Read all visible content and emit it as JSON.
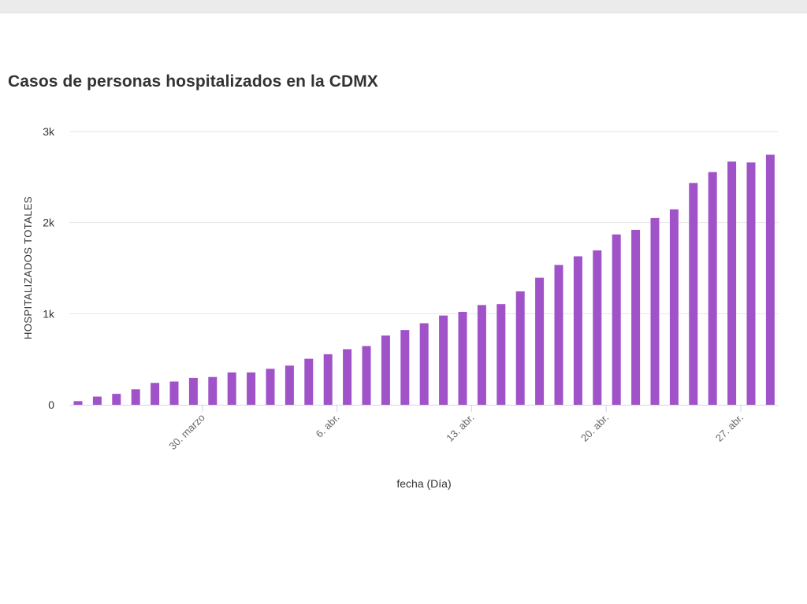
{
  "chart_data": {
    "type": "bar",
    "title": "Casos de personas hospitalizados en la CDMX",
    "xlabel": "fecha (Día)",
    "ylabel": "HOSPITALIZADOS TOTALES",
    "ylim": [
      0,
      3000
    ],
    "y_ticks": [
      {
        "value": 0,
        "label": "0"
      },
      {
        "value": 1000,
        "label": "1k"
      },
      {
        "value": 2000,
        "label": "2k"
      },
      {
        "value": 3000,
        "label": "3k"
      }
    ],
    "x_ticks": [
      {
        "date": "2020-03-30",
        "label": "30. marzo"
      },
      {
        "date": "2020-04-06",
        "label": "6. abr."
      },
      {
        "date": "2020-04-13",
        "label": "13. abr."
      },
      {
        "date": "2020-04-20",
        "label": "20. abr."
      },
      {
        "date": "2020-04-27",
        "label": "27. abr."
      }
    ],
    "grid": true,
    "color": "#a052c9",
    "series": [
      {
        "points": [
          {
            "date": "2020-03-23",
            "value": 40
          },
          {
            "date": "2020-03-24",
            "value": 90
          },
          {
            "date": "2020-03-25",
            "value": 120
          },
          {
            "date": "2020-03-26",
            "value": 170
          },
          {
            "date": "2020-03-27",
            "value": 240
          },
          {
            "date": "2020-03-28",
            "value": 255
          },
          {
            "date": "2020-03-29",
            "value": 295
          },
          {
            "date": "2020-03-30",
            "value": 305
          },
          {
            "date": "2020-03-31",
            "value": 355
          },
          {
            "date": "2020-04-01",
            "value": 355
          },
          {
            "date": "2020-04-02",
            "value": 395
          },
          {
            "date": "2020-04-03",
            "value": 430
          },
          {
            "date": "2020-04-04",
            "value": 505
          },
          {
            "date": "2020-04-05",
            "value": 555
          },
          {
            "date": "2020-04-06",
            "value": 610
          },
          {
            "date": "2020-04-07",
            "value": 645
          },
          {
            "date": "2020-04-08",
            "value": 760
          },
          {
            "date": "2020-04-09",
            "value": 820
          },
          {
            "date": "2020-04-10",
            "value": 895
          },
          {
            "date": "2020-04-11",
            "value": 980
          },
          {
            "date": "2020-04-12",
            "value": 1020
          },
          {
            "date": "2020-04-13",
            "value": 1095
          },
          {
            "date": "2020-04-14",
            "value": 1105
          },
          {
            "date": "2020-04-15",
            "value": 1245
          },
          {
            "date": "2020-04-16",
            "value": 1395
          },
          {
            "date": "2020-04-17",
            "value": 1535
          },
          {
            "date": "2020-04-18",
            "value": 1630
          },
          {
            "date": "2020-04-19",
            "value": 1695
          },
          {
            "date": "2020-04-20",
            "value": 1870
          },
          {
            "date": "2020-04-21",
            "value": 1920
          },
          {
            "date": "2020-04-22",
            "value": 2050
          },
          {
            "date": "2020-04-23",
            "value": 2145
          },
          {
            "date": "2020-04-24",
            "value": 2435
          },
          {
            "date": "2020-04-25",
            "value": 2555
          },
          {
            "date": "2020-04-26",
            "value": 2670
          },
          {
            "date": "2020-04-27",
            "value": 2660
          },
          {
            "date": "2020-04-28",
            "value": 2745
          }
        ]
      }
    ]
  }
}
